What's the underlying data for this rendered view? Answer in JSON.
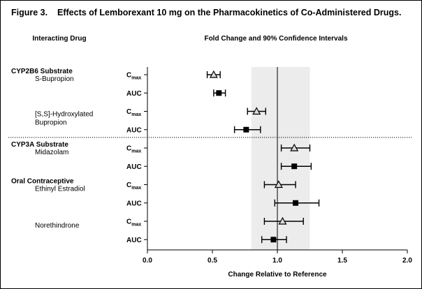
{
  "figure_label": "Figure 3.",
  "title": "Effects of Lemborexant 10 mg on the Pharmacokinetics of Co-Administered Drugs.",
  "left_header": "Interacting Drug",
  "right_header": "Fold Change and 90% Confidence Intervals",
  "groups": [
    {
      "label": "CYP2B6 Substrate",
      "row": 0
    },
    {
      "label": "CYP3A Substrate",
      "row": 4
    },
    {
      "label": "Oral Contraceptive",
      "row": 6
    }
  ],
  "drugs": [
    {
      "lines": [
        "S-Bupropion"
      ],
      "rows": [
        0,
        1
      ]
    },
    {
      "lines": [
        "[S,S]-Hydroxylated",
        "Bupropion"
      ],
      "rows": [
        2,
        3
      ]
    },
    {
      "lines": [
        "Midazolam"
      ],
      "rows": [
        4,
        5
      ]
    },
    {
      "lines": [
        "Ethinyl Estradiol"
      ],
      "rows": [
        6,
        7
      ]
    },
    {
      "lines": [
        "Norethindrone"
      ],
      "rows": [
        8,
        9
      ]
    }
  ],
  "colors": {
    "band": "#ececec",
    "line": "#000000",
    "divider": "#000000"
  },
  "chart_data": {
    "type": "forest",
    "xlabel": "Change Relative to Reference",
    "xlim": [
      0,
      2.0
    ],
    "xticks": [
      0.0,
      0.5,
      1.0,
      1.5,
      2.0
    ],
    "xtick_labels": [
      "0.0",
      "0.5",
      "1.0",
      "1.5",
      "2.0"
    ],
    "reference_line": 1.0,
    "shaded_band": [
      0.8,
      1.25
    ],
    "divider_after_row": 3,
    "rows": [
      {
        "drug": "S-Bupropion",
        "param": "C",
        "param_sub": "max",
        "marker": "triangle",
        "value": 0.51,
        "ci": [
          0.46,
          0.56
        ]
      },
      {
        "drug": "S-Bupropion",
        "param": "AUC",
        "param_sub": "",
        "marker": "square",
        "value": 0.55,
        "ci": [
          0.51,
          0.6
        ]
      },
      {
        "drug": "[S,S]-Hydroxylated Bupropion",
        "param": "C",
        "param_sub": "max",
        "marker": "triangle",
        "value": 0.84,
        "ci": [
          0.77,
          0.91
        ]
      },
      {
        "drug": "[S,S]-Hydroxylated Bupropion",
        "param": "AUC",
        "param_sub": "",
        "marker": "square",
        "value": 0.76,
        "ci": [
          0.67,
          0.87
        ]
      },
      {
        "drug": "Midazolam",
        "param": "C",
        "param_sub": "max",
        "marker": "triangle",
        "value": 1.13,
        "ci": [
          1.03,
          1.25
        ]
      },
      {
        "drug": "Midazolam",
        "param": "AUC",
        "param_sub": "",
        "marker": "square",
        "value": 1.13,
        "ci": [
          1.03,
          1.26
        ]
      },
      {
        "drug": "Ethinyl Estradiol",
        "param": "C",
        "param_sub": "max",
        "marker": "triangle",
        "value": 1.01,
        "ci": [
          0.9,
          1.14
        ]
      },
      {
        "drug": "Ethinyl Estradiol",
        "param": "AUC",
        "param_sub": "",
        "marker": "square",
        "value": 1.14,
        "ci": [
          0.98,
          1.32
        ]
      },
      {
        "drug": "Norethindrone",
        "param": "C",
        "param_sub": "max",
        "marker": "triangle",
        "value": 1.04,
        "ci": [
          0.9,
          1.2
        ]
      },
      {
        "drug": "Norethindrone",
        "param": "AUC",
        "param_sub": "",
        "marker": "square",
        "value": 0.97,
        "ci": [
          0.88,
          1.07
        ]
      }
    ]
  }
}
